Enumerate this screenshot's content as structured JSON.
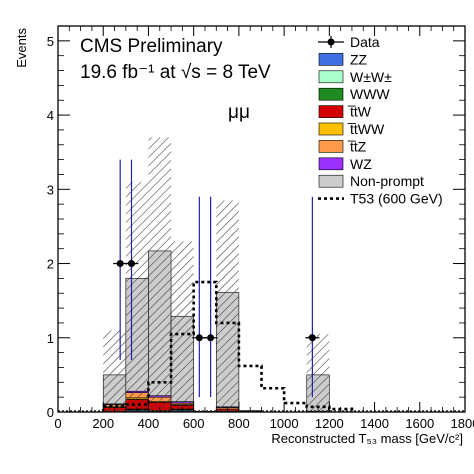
{
  "chart_data": {
    "type": "bar",
    "stacked": true,
    "title": "CMS Preliminary",
    "subtitle": "19.6 fb⁻¹ at √s = 8 TeV",
    "channel_label": "μμ",
    "xlabel": "Reconstructed T₅₃ mass [GeV/c²]",
    "ylabel": "Events",
    "xlim": [
      0,
      1800
    ],
    "ylim": [
      0,
      5.2
    ],
    "x_ticks": [
      "0",
      "200",
      "400",
      "600",
      "800",
      "1000",
      "1200",
      "1400",
      "1600",
      "1800"
    ],
    "y_ticks": [
      "0",
      "1",
      "2",
      "3",
      "4",
      "5"
    ],
    "bin_width": 100,
    "bin_low_edges": [
      200,
      300,
      400,
      500,
      600,
      700,
      800,
      900,
      1000,
      1100,
      1200
    ],
    "series": [
      {
        "name": "ZZ",
        "color": "#3f6fe0",
        "values": [
          0.0,
          0.02,
          0.01,
          0.02,
          0.0,
          0.01,
          0.0,
          0.0,
          0.0,
          0.0,
          0.0
        ]
      },
      {
        "name": "W±W±",
        "color": "#aaffcc",
        "values": [
          0.0,
          0.01,
          0.01,
          0.01,
          0.0,
          0.0,
          0.0,
          0.0,
          0.0,
          0.0,
          0.0
        ]
      },
      {
        "name": "WWW",
        "color": "#1f8a1f",
        "values": [
          0.0,
          0.01,
          0.0,
          0.01,
          0.0,
          0.0,
          0.0,
          0.0,
          0.0,
          0.0,
          0.0
        ]
      },
      {
        "name": "t̅tW",
        "color": "#d40000",
        "values": [
          0.06,
          0.13,
          0.11,
          0.05,
          0.0,
          0.03,
          0.01,
          0.0,
          0.0,
          0.01,
          0.0
        ]
      },
      {
        "name": "t̅tWW",
        "color": "#ffc000",
        "values": [
          0.01,
          0.02,
          0.01,
          0.01,
          0.0,
          0.0,
          0.0,
          0.0,
          0.0,
          0.0,
          0.0
        ]
      },
      {
        "name": "t̅tZ",
        "color": "#ff9a4a",
        "values": [
          0.03,
          0.07,
          0.06,
          0.02,
          0.0,
          0.02,
          0.01,
          0.0,
          0.0,
          0.0,
          0.0
        ]
      },
      {
        "name": "WZ",
        "color": "#9b30ff",
        "values": [
          0.01,
          0.02,
          0.02,
          0.02,
          0.01,
          0.01,
          0.0,
          0.0,
          0.0,
          0.0,
          0.0
        ]
      },
      {
        "name": "Non-prompt",
        "color": "#cccccc",
        "values": [
          0.39,
          1.52,
          1.95,
          1.15,
          0.0,
          1.54,
          0.0,
          0.0,
          0.0,
          0.49,
          0.0
        ]
      }
    ],
    "total_uncertainty": {
      "name": "uncertainty",
      "lower": [
        0.0,
        0.0,
        0.0,
        0.0,
        0.0,
        0.0,
        0.0,
        0.0,
        0.0,
        0.0,
        0.0
      ],
      "upper": [
        1.1,
        3.1,
        3.7,
        2.3,
        0.0,
        2.85,
        0.0,
        0.0,
        0.0,
        1.05,
        0.0
      ]
    },
    "signal": {
      "name": "T53 (600 GeV)",
      "style": "dotted",
      "values": [
        0.08,
        0.1,
        0.4,
        1.05,
        1.75,
        1.2,
        0.62,
        0.32,
        0.12,
        0.07,
        0.04
      ]
    },
    "data_points": {
      "name": "Data",
      "x": [
        275,
        325,
        625,
        675,
        1125
      ],
      "y": [
        2,
        2,
        1,
        1,
        1
      ],
      "err_low": [
        1.3,
        1.3,
        0.8,
        0.8,
        0.8
      ],
      "err_high": [
        1.4,
        1.4,
        1.9,
        1.9,
        1.9
      ]
    },
    "legend": {
      "placement": "top-right",
      "entries": [
        "Data",
        "ZZ",
        "W±W±",
        "WWW",
        "t̅tW",
        "t̅tWW",
        "t̅tZ",
        "WZ",
        "Non-prompt",
        "T53 (600 GeV)"
      ]
    }
  }
}
